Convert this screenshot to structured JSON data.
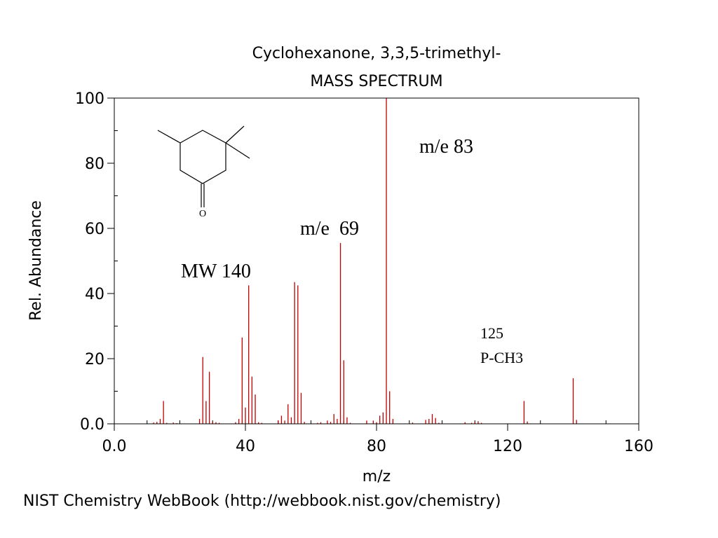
{
  "chart_data": {
    "type": "bar",
    "title": "Cyclohexanone, 3,3,5-trimethyl-",
    "subtitle": "MASS SPECTRUM",
    "xlabel": "m/z",
    "ylabel": "Rel. Abundance",
    "xlim": [
      0,
      160
    ],
    "ylim": [
      0,
      100
    ],
    "x_ticks": [
      {
        "value": 0,
        "label": "0.0"
      },
      {
        "value": 40,
        "label": "40"
      },
      {
        "value": 80,
        "label": "80"
      },
      {
        "value": 120,
        "label": "120"
      },
      {
        "value": 160,
        "label": "160"
      }
    ],
    "y_ticks": [
      {
        "value": 0,
        "label": "0.0"
      },
      {
        "value": 20,
        "label": "20"
      },
      {
        "value": 40,
        "label": "40"
      },
      {
        "value": 60,
        "label": "60"
      },
      {
        "value": 80,
        "label": "80"
      },
      {
        "value": 100,
        "label": "100"
      }
    ],
    "bar_color": "#c00000",
    "peaks": [
      {
        "mz": 12,
        "abundance": 0.4
      },
      {
        "mz": 13,
        "abundance": 0.6
      },
      {
        "mz": 14,
        "abundance": 1.5
      },
      {
        "mz": 15,
        "abundance": 7
      },
      {
        "mz": 16,
        "abundance": 0.3
      },
      {
        "mz": 18,
        "abundance": 0.4
      },
      {
        "mz": 19,
        "abundance": 0.2
      },
      {
        "mz": 26,
        "abundance": 1.5
      },
      {
        "mz": 27,
        "abundance": 20.5
      },
      {
        "mz": 28,
        "abundance": 7
      },
      {
        "mz": 29,
        "abundance": 16
      },
      {
        "mz": 30,
        "abundance": 0.6
      },
      {
        "mz": 31,
        "abundance": 0.5
      },
      {
        "mz": 32,
        "abundance": 0.3
      },
      {
        "mz": 37,
        "abundance": 0.5
      },
      {
        "mz": 38,
        "abundance": 1.5
      },
      {
        "mz": 39,
        "abundance": 26.5
      },
      {
        "mz": 40,
        "abundance": 5
      },
      {
        "mz": 41,
        "abundance": 42.5
      },
      {
        "mz": 42,
        "abundance": 14.5
      },
      {
        "mz": 43,
        "abundance": 9
      },
      {
        "mz": 44,
        "abundance": 0.5
      },
      {
        "mz": 45,
        "abundance": 0.3
      },
      {
        "mz": 50,
        "abundance": 1
      },
      {
        "mz": 51,
        "abundance": 2.5
      },
      {
        "mz": 52,
        "abundance": 1
      },
      {
        "mz": 53,
        "abundance": 6
      },
      {
        "mz": 54,
        "abundance": 2
      },
      {
        "mz": 55,
        "abundance": 43.5
      },
      {
        "mz": 56,
        "abundance": 42.5
      },
      {
        "mz": 57,
        "abundance": 9.5
      },
      {
        "mz": 58,
        "abundance": 0.6
      },
      {
        "mz": 62,
        "abundance": 0.3
      },
      {
        "mz": 63,
        "abundance": 0.5
      },
      {
        "mz": 65,
        "abundance": 1
      },
      {
        "mz": 66,
        "abundance": 0.6
      },
      {
        "mz": 67,
        "abundance": 3
      },
      {
        "mz": 68,
        "abundance": 1.5
      },
      {
        "mz": 69,
        "abundance": 55.5
      },
      {
        "mz": 70,
        "abundance": 19.5
      },
      {
        "mz": 71,
        "abundance": 2
      },
      {
        "mz": 72,
        "abundance": 0.3
      },
      {
        "mz": 77,
        "abundance": 1
      },
      {
        "mz": 79,
        "abundance": 1
      },
      {
        "mz": 80,
        "abundance": 0.5
      },
      {
        "mz": 81,
        "abundance": 2.5
      },
      {
        "mz": 82,
        "abundance": 3.5
      },
      {
        "mz": 83,
        "abundance": 100
      },
      {
        "mz": 84,
        "abundance": 10
      },
      {
        "mz": 85,
        "abundance": 1.5
      },
      {
        "mz": 91,
        "abundance": 0.4
      },
      {
        "mz": 95,
        "abundance": 1.2
      },
      {
        "mz": 96,
        "abundance": 1.5
      },
      {
        "mz": 97,
        "abundance": 3
      },
      {
        "mz": 98,
        "abundance": 1.8
      },
      {
        "mz": 99,
        "abundance": 0.3
      },
      {
        "mz": 107,
        "abundance": 0.5
      },
      {
        "mz": 109,
        "abundance": 0.3
      },
      {
        "mz": 110,
        "abundance": 0.5
      },
      {
        "mz": 111,
        "abundance": 0.8
      },
      {
        "mz": 112,
        "abundance": 0.3
      },
      {
        "mz": 125,
        "abundance": 7
      },
      {
        "mz": 126,
        "abundance": 0.7
      },
      {
        "mz": 140,
        "abundance": 14
      },
      {
        "mz": 141,
        "abundance": 1.2
      }
    ],
    "annotations": {
      "mw": "MW 140",
      "peak_83": "m/e 83",
      "peak_69": "m/e  69",
      "peak_125_mz": "125",
      "peak_125_note": "P-CH3",
      "carbonyl_oxygen": "O"
    }
  },
  "footer": "NIST Chemistry WebBook (http://webbook.nist.gov/chemistry)"
}
